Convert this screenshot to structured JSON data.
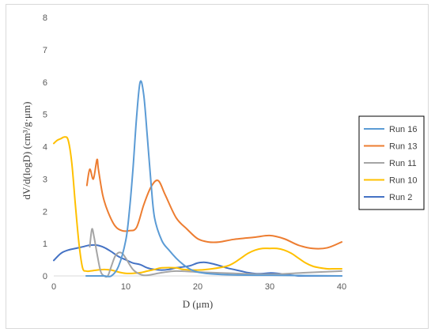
{
  "chart_data": {
    "type": "line",
    "title": "",
    "xlabel": "D (μm)",
    "ylabel": "dV/d(logD) (cm³/g·μm)",
    "xlim": [
      0,
      40
    ],
    "ylim": [
      0,
      8
    ],
    "x_ticks": [
      "0",
      "10",
      "20",
      "30",
      "40"
    ],
    "y_ticks": [
      "0",
      "1",
      "2",
      "3",
      "4",
      "5",
      "6",
      "7",
      "8"
    ],
    "grid": false,
    "legend_position": "right",
    "series": [
      {
        "name": "Run 16",
        "color": "#5b9bd5",
        "x": [
          4.5,
          6,
          7,
          8,
          9,
          10,
          10.5,
          11,
          11.5,
          12,
          12.5,
          13,
          13.5,
          14,
          15,
          16,
          17,
          18,
          19,
          20,
          22,
          25,
          30,
          35,
          40
        ],
        "y": [
          0.0,
          0.0,
          0.0,
          0.0,
          0.3,
          1.1,
          2.0,
          3.3,
          4.9,
          6.0,
          5.6,
          4.3,
          2.9,
          1.8,
          1.1,
          0.8,
          0.55,
          0.35,
          0.2,
          0.12,
          0.06,
          0.03,
          0.02,
          0.01,
          0.0
        ]
      },
      {
        "name": "Run 13",
        "color": "#ed7d31",
        "x": [
          4.6,
          5,
          5.5,
          6,
          6.2,
          6.8,
          7.5,
          8.5,
          9.5,
          10.5,
          11.5,
          12.5,
          13.5,
          14.5,
          15.5,
          17,
          18.5,
          20,
          21.5,
          23,
          25,
          28,
          30,
          32,
          34,
          36,
          38,
          40
        ],
        "y": [
          2.8,
          3.3,
          3.0,
          3.6,
          3.3,
          2.5,
          2.0,
          1.55,
          1.4,
          1.4,
          1.5,
          2.2,
          2.75,
          2.95,
          2.5,
          1.8,
          1.45,
          1.15,
          1.05,
          1.05,
          1.13,
          1.2,
          1.25,
          1.15,
          0.95,
          0.85,
          0.87,
          1.05
        ]
      },
      {
        "name": "Run 11",
        "color": "#a5a5a5",
        "x": [
          5,
          5.3,
          5.6,
          6,
          6.5,
          7,
          7.5,
          8,
          8.5,
          9,
          9.5,
          10,
          11,
          12,
          13,
          15,
          17,
          20,
          25,
          30,
          35,
          40
        ],
        "y": [
          0.9,
          1.45,
          1.2,
          0.7,
          0.15,
          0.0,
          0.0,
          0.3,
          0.6,
          0.72,
          0.7,
          0.55,
          0.2,
          0.05,
          0.02,
          0.1,
          0.15,
          0.12,
          0.08,
          0.05,
          0.1,
          0.15
        ]
      },
      {
        "name": "Run 10",
        "color": "#ffc000",
        "x": [
          0,
          0.5,
          1,
          1.5,
          2,
          2.5,
          3,
          3.5,
          4,
          4.5,
          5,
          6,
          7,
          8,
          9,
          10,
          11,
          12,
          13,
          14,
          15,
          17,
          18,
          20,
          22,
          24,
          25,
          26,
          27,
          28,
          29,
          30,
          31,
          32,
          33,
          34,
          35,
          36,
          37,
          38,
          39,
          40
        ],
        "y": [
          4.1,
          4.2,
          4.25,
          4.3,
          4.2,
          3.5,
          2.2,
          1.0,
          0.25,
          0.15,
          0.15,
          0.18,
          0.2,
          0.18,
          0.12,
          0.08,
          0.08,
          0.1,
          0.15,
          0.2,
          0.25,
          0.25,
          0.2,
          0.18,
          0.22,
          0.3,
          0.4,
          0.55,
          0.7,
          0.8,
          0.85,
          0.85,
          0.85,
          0.8,
          0.7,
          0.55,
          0.4,
          0.3,
          0.25,
          0.22,
          0.22,
          0.22
        ]
      },
      {
        "name": "Run 2",
        "color": "#4472c4",
        "x": [
          0,
          1,
          2,
          3,
          4,
          5,
          6,
          7,
          8,
          9,
          10,
          11,
          12,
          13,
          14,
          15,
          16,
          17,
          18,
          19,
          20,
          21,
          22,
          23,
          24,
          25,
          26,
          27,
          28,
          29,
          30,
          31,
          32,
          33,
          34,
          35,
          36,
          37,
          38,
          39,
          40
        ],
        "y": [
          0.48,
          0.7,
          0.8,
          0.85,
          0.9,
          0.95,
          0.95,
          0.88,
          0.75,
          0.6,
          0.5,
          0.4,
          0.35,
          0.25,
          0.2,
          0.18,
          0.2,
          0.25,
          0.28,
          0.32,
          0.4,
          0.42,
          0.38,
          0.32,
          0.25,
          0.2,
          0.15,
          0.1,
          0.07,
          0.07,
          0.09,
          0.08,
          0.05,
          0.02,
          0.0,
          0.0,
          0.0,
          0.0,
          0.0,
          0.0,
          0.0
        ]
      }
    ]
  }
}
